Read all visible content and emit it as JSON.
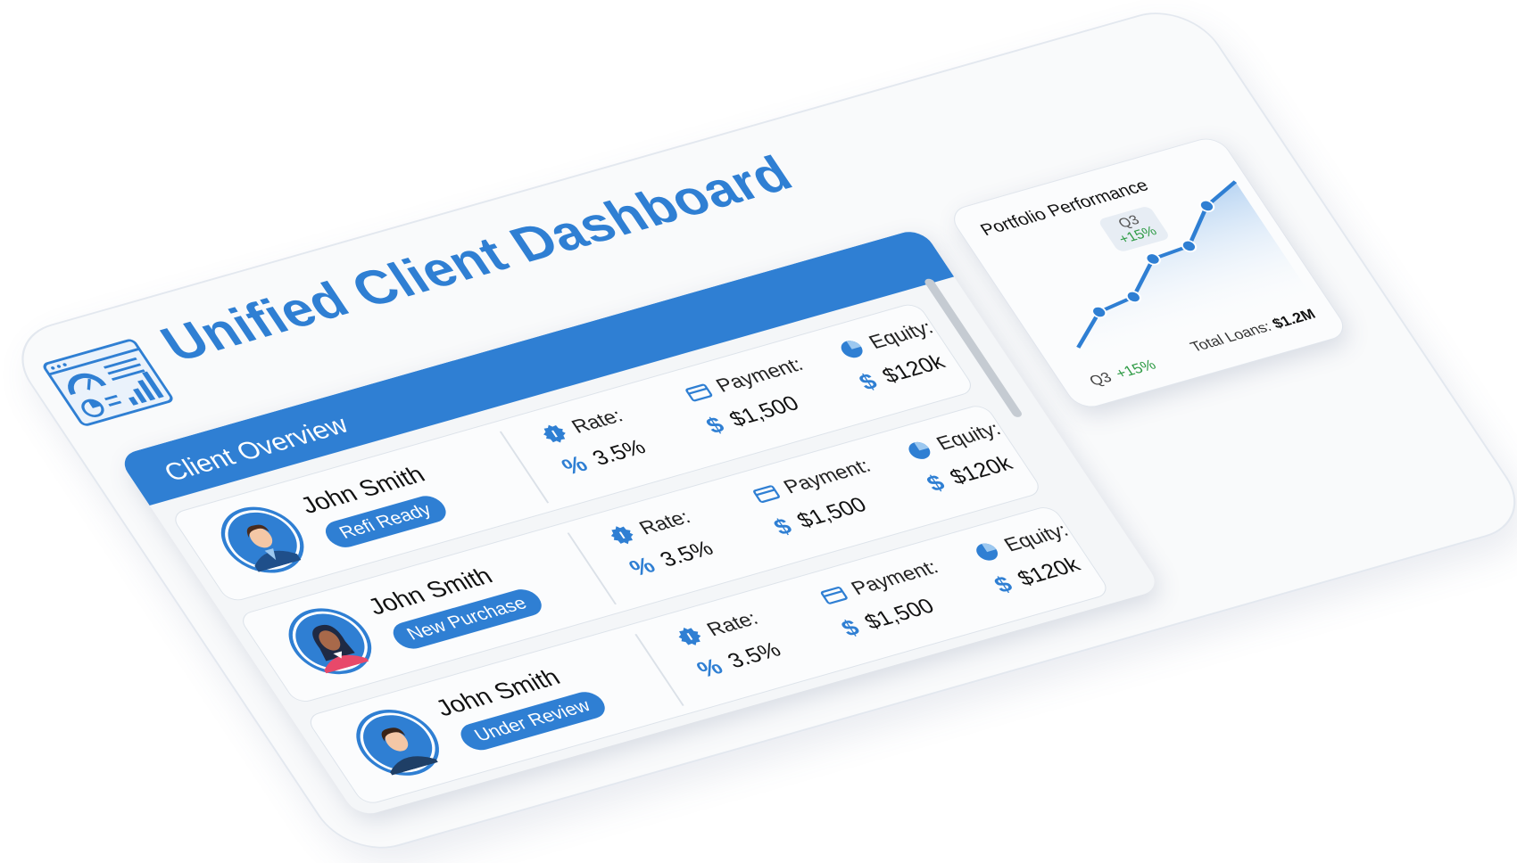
{
  "header": {
    "title": "Unified Client Dashboard",
    "logo_icon": "dashboard-icon"
  },
  "colors": {
    "accent": "#2f7fd3",
    "positive": "#2e9b45",
    "text": "#111111"
  },
  "client_overview": {
    "title": "Client Overview",
    "rows": [
      {
        "name": "John Smith",
        "status": "Refi Ready",
        "rate_label": "Rate:",
        "rate": "3.5%",
        "payment_label": "Payment:",
        "payment": "$1,500",
        "equity_label": "Equity:",
        "equity": "$120k",
        "avatar": "male-suit"
      },
      {
        "name": "John Smith",
        "status": "New Purchase",
        "rate_label": "Rate:",
        "rate": "3.5%",
        "payment_label": "Payment:",
        "payment": "$1,500",
        "equity_label": "Equity:",
        "equity": "$120k",
        "avatar": "female"
      },
      {
        "name": "John Smith",
        "status": "Under Review",
        "rate_label": "Rate:",
        "rate": "3.5%",
        "payment_label": "Payment:",
        "payment": "$1,500",
        "equity_label": "Equity:",
        "equity": "$120k",
        "avatar": "male-casual"
      }
    ],
    "symbols": {
      "percent": "%",
      "dollar": "$"
    }
  },
  "portfolio": {
    "title": "Portfolio Performance",
    "tooltip": {
      "quarter": "Q3",
      "change": "+15%"
    },
    "footer_quarter": "Q3",
    "footer_change": "+15%",
    "total_label": "Total Loans:",
    "total_value": "$1.2M"
  },
  "chart_data": {
    "type": "area",
    "values": [
      10,
      32,
      36,
      60,
      62,
      88,
      100
    ],
    "markers": [
      false,
      true,
      true,
      true,
      true,
      true,
      false
    ],
    "highlight_index": 3
  }
}
